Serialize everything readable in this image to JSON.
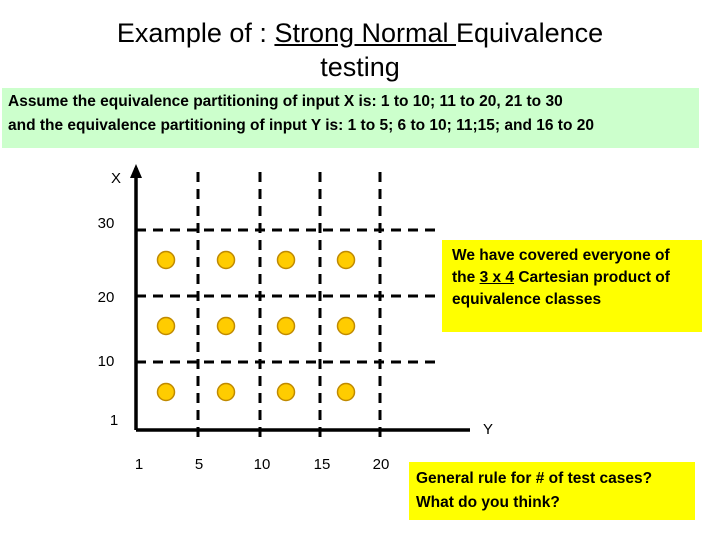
{
  "title": {
    "prefix": "Example of : ",
    "underlined": "Strong Normal ",
    "suffix": "Equivalence",
    "line2": "testing"
  },
  "assumption": {
    "line1": "Assume the equivalence partitioning of input X is:  1 to 10; 11 to 20, 21 to 30",
    "line2": "and the equivalence partitioning of input Y is: 1 to 5; 6 to 10; 11;15; and 16 to 20"
  },
  "axes": {
    "x_axis_name": "X",
    "y_axis_name": "Y",
    "vertical_labels": [
      "30",
      "20",
      "10",
      "1"
    ],
    "horizontal_labels": [
      "1",
      "5",
      "10",
      "15",
      "20"
    ]
  },
  "test_points": {
    "rows": 3,
    "cols": 4,
    "color": "#ffcc00",
    "stroke": "#c08a00"
  },
  "callout": {
    "part1": "We have covered everyone of the ",
    "u1": "3 x 4",
    "part2": " Cartesian product of equivalence classes"
  },
  "question": {
    "line1": "General rule for # of test cases?",
    "line2": "What do you think?"
  },
  "colors": {
    "assumption_bg": "#ccffcc",
    "callout_bg": "#ffff00"
  }
}
